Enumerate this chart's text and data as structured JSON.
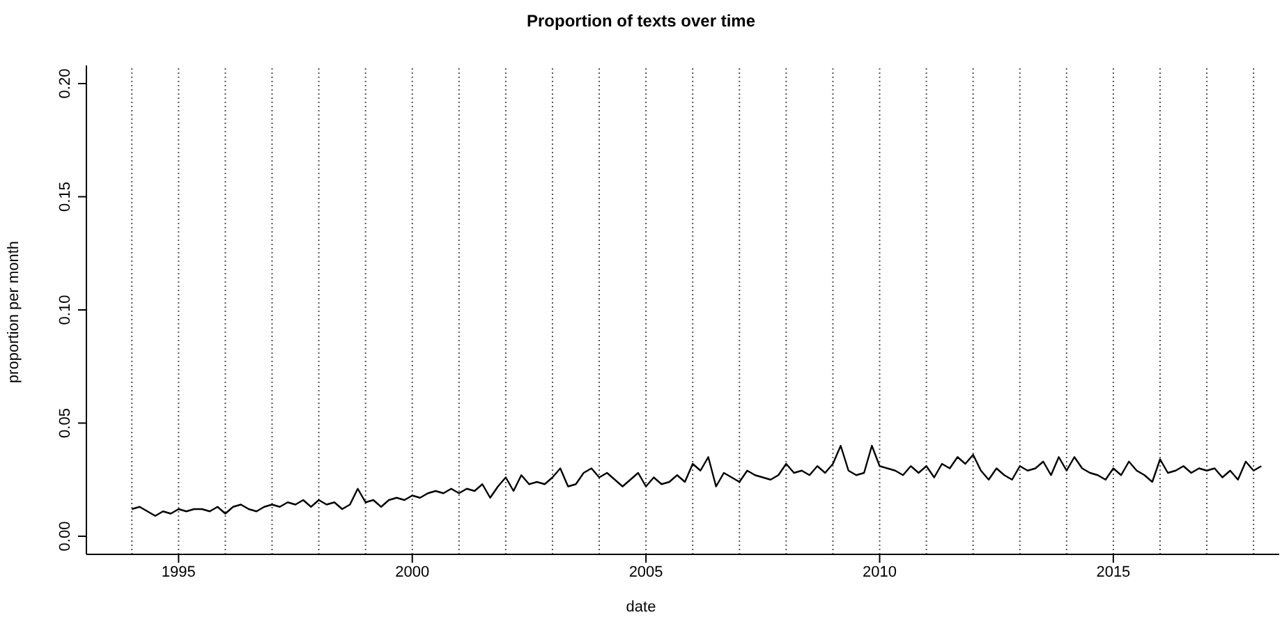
{
  "chart_data": {
    "type": "line",
    "title": "Proportion of texts over time",
    "xlabel": "date",
    "ylabel": "proportion per month",
    "x": [
      "1994-01",
      "1994-03",
      "1994-05",
      "1994-07",
      "1994-09",
      "1994-11",
      "1995-01",
      "1995-03",
      "1995-05",
      "1995-07",
      "1995-09",
      "1995-11",
      "1996-01",
      "1996-03",
      "1996-05",
      "1996-07",
      "1996-09",
      "1996-11",
      "1997-01",
      "1997-03",
      "1997-05",
      "1997-07",
      "1997-09",
      "1997-11",
      "1998-01",
      "1998-03",
      "1998-05",
      "1998-07",
      "1998-09",
      "1998-11",
      "1999-01",
      "1999-03",
      "1999-05",
      "1999-07",
      "1999-09",
      "1999-11",
      "2000-01",
      "2000-03",
      "2000-05",
      "2000-07",
      "2000-09",
      "2000-11",
      "2001-01",
      "2001-03",
      "2001-05",
      "2001-07",
      "2001-09",
      "2001-11",
      "2002-01",
      "2002-03",
      "2002-05",
      "2002-07",
      "2002-09",
      "2002-11",
      "2003-01",
      "2003-03",
      "2003-05",
      "2003-07",
      "2003-09",
      "2003-11",
      "2004-01",
      "2004-03",
      "2004-05",
      "2004-07",
      "2004-09",
      "2004-11",
      "2005-01",
      "2005-03",
      "2005-05",
      "2005-07",
      "2005-09",
      "2005-11",
      "2006-01",
      "2006-03",
      "2006-05",
      "2006-07",
      "2006-09",
      "2006-11",
      "2007-01",
      "2007-03",
      "2007-05",
      "2007-07",
      "2007-09",
      "2007-11",
      "2008-01",
      "2008-03",
      "2008-05",
      "2008-07",
      "2008-09",
      "2008-11",
      "2009-01",
      "2009-03",
      "2009-05",
      "2009-07",
      "2009-09",
      "2009-11",
      "2010-01",
      "2010-03",
      "2010-05",
      "2010-07",
      "2010-09",
      "2010-11",
      "2011-01",
      "2011-03",
      "2011-05",
      "2011-07",
      "2011-09",
      "2011-11",
      "2012-01",
      "2012-03",
      "2012-05",
      "2012-07",
      "2012-09",
      "2012-11",
      "2013-01",
      "2013-03",
      "2013-05",
      "2013-07",
      "2013-09",
      "2013-11",
      "2014-01",
      "2014-03",
      "2014-05",
      "2014-07",
      "2014-09",
      "2014-11",
      "2015-01",
      "2015-03",
      "2015-05",
      "2015-07",
      "2015-09",
      "2015-11",
      "2016-01",
      "2016-03",
      "2016-05",
      "2016-07",
      "2016-09",
      "2016-11",
      "2017-01",
      "2017-03",
      "2017-05",
      "2017-07",
      "2017-09",
      "2017-11",
      "2018-01",
      "2018-03"
    ],
    "series": [
      {
        "color": "#000000",
        "values": [
          0.012,
          0.013,
          0.011,
          0.009,
          0.011,
          0.01,
          0.012,
          0.011,
          0.012,
          0.012,
          0.011,
          0.013,
          0.01,
          0.013,
          0.014,
          0.012,
          0.011,
          0.013,
          0.014,
          0.013,
          0.015,
          0.014,
          0.016,
          0.013,
          0.016,
          0.014,
          0.015,
          0.012,
          0.014,
          0.021,
          0.015,
          0.016,
          0.013,
          0.016,
          0.017,
          0.016,
          0.018,
          0.017,
          0.019,
          0.02,
          0.019,
          0.021,
          0.019,
          0.021,
          0.02,
          0.023,
          0.017,
          0.022,
          0.026,
          0.02,
          0.027,
          0.023,
          0.024,
          0.023,
          0.026,
          0.03,
          0.022,
          0.023,
          0.028,
          0.03,
          0.026,
          0.028,
          0.025,
          0.022,
          0.025,
          0.028,
          0.022,
          0.026,
          0.023,
          0.024,
          0.027,
          0.024,
          0.032,
          0.029,
          0.035,
          0.022,
          0.028,
          0.026,
          0.024,
          0.029,
          0.027,
          0.026,
          0.025,
          0.027,
          0.032,
          0.028,
          0.029,
          0.027,
          0.031,
          0.028,
          0.032,
          0.04,
          0.029,
          0.027,
          0.028,
          0.04,
          0.031,
          0.03,
          0.029,
          0.027,
          0.031,
          0.028,
          0.031,
          0.026,
          0.032,
          0.03,
          0.035,
          0.032,
          0.036,
          0.029,
          0.025,
          0.03,
          0.027,
          0.025,
          0.031,
          0.029,
          0.03,
          0.033,
          0.027,
          0.035,
          0.029,
          0.035,
          0.03,
          0.028,
          0.027,
          0.025,
          0.03,
          0.027,
          0.033,
          0.029,
          0.027,
          0.024,
          0.034,
          0.028,
          0.029,
          0.031,
          0.028,
          0.03,
          0.029,
          0.03,
          0.026,
          0.029,
          0.025,
          0.033,
          0.029,
          0.031
        ]
      }
    ],
    "xlim": [
      "1993-01-11",
      "2018-07-19"
    ],
    "xticks": [
      {
        "value": "1995-01-01",
        "label": "1995"
      },
      {
        "value": "2000-01-01",
        "label": "2000"
      },
      {
        "value": "2005-01-01",
        "label": "2005"
      },
      {
        "value": "2010-01-01",
        "label": "2010"
      },
      {
        "value": "2015-01-01",
        "label": "2015"
      }
    ],
    "ylim": [
      -0.008,
      0.208
    ],
    "yticks": [
      {
        "value": 0,
        "label": "0.00"
      },
      {
        "value": 0.05,
        "label": "0.05"
      },
      {
        "value": 0.1,
        "label": "0.10"
      },
      {
        "value": 0.15,
        "label": "0.15"
      },
      {
        "value": 0.2,
        "label": "0.20"
      }
    ],
    "ref_lines": [
      {
        "axis": "x",
        "value": "1994-01-01",
        "color": "#555555",
        "line_style": "dotted"
      },
      {
        "axis": "x",
        "value": "1995-01-01",
        "color": "#555555",
        "line_style": "dotted"
      },
      {
        "axis": "x",
        "value": "1996-01-01",
        "color": "#555555",
        "line_style": "dotted"
      },
      {
        "axis": "x",
        "value": "1997-01-01",
        "color": "#555555",
        "line_style": "dotted"
      },
      {
        "axis": "x",
        "value": "1998-01-01",
        "color": "#555555",
        "line_style": "dotted"
      },
      {
        "axis": "x",
        "value": "1999-01-01",
        "color": "#555555",
        "line_style": "dotted"
      },
      {
        "axis": "x",
        "value": "2000-01-01",
        "color": "#555555",
        "line_style": "dotted"
      },
      {
        "axis": "x",
        "value": "2001-01-01",
        "color": "#555555",
        "line_style": "dotted"
      },
      {
        "axis": "x",
        "value": "2002-01-01",
        "color": "#555555",
        "line_style": "dotted"
      },
      {
        "axis": "x",
        "value": "2003-01-01",
        "color": "#555555",
        "line_style": "dotted"
      },
      {
        "axis": "x",
        "value": "2004-01-01",
        "color": "#555555",
        "line_style": "dotted"
      },
      {
        "axis": "x",
        "value": "2005-01-01",
        "color": "#555555",
        "line_style": "dotted"
      },
      {
        "axis": "x",
        "value": "2006-01-01",
        "color": "#555555",
        "line_style": "dotted"
      },
      {
        "axis": "x",
        "value": "2007-01-01",
        "color": "#555555",
        "line_style": "dotted"
      },
      {
        "axis": "x",
        "value": "2008-01-01",
        "color": "#555555",
        "line_style": "dotted"
      },
      {
        "axis": "x",
        "value": "2009-01-01",
        "color": "#555555",
        "line_style": "dotted"
      },
      {
        "axis": "x",
        "value": "2010-01-01",
        "color": "#555555",
        "line_style": "dotted"
      },
      {
        "axis": "x",
        "value": "2011-01-01",
        "color": "#555555",
        "line_style": "dotted"
      },
      {
        "axis": "x",
        "value": "2012-01-01",
        "color": "#555555",
        "line_style": "dotted"
      },
      {
        "axis": "x",
        "value": "2013-01-01",
        "color": "#555555",
        "line_style": "dotted"
      },
      {
        "axis": "x",
        "value": "2014-01-01",
        "color": "#555555",
        "line_style": "dotted"
      },
      {
        "axis": "x",
        "value": "2015-01-01",
        "color": "#555555",
        "line_style": "dotted"
      },
      {
        "axis": "x",
        "value": "2016-01-01",
        "color": "#555555",
        "line_style": "dotted"
      },
      {
        "axis": "x",
        "value": "2017-01-01",
        "color": "#555555",
        "line_style": "dotted"
      },
      {
        "axis": "x",
        "value": "2018-01-01",
        "color": "#555555",
        "line_style": "dotted"
      }
    ]
  }
}
